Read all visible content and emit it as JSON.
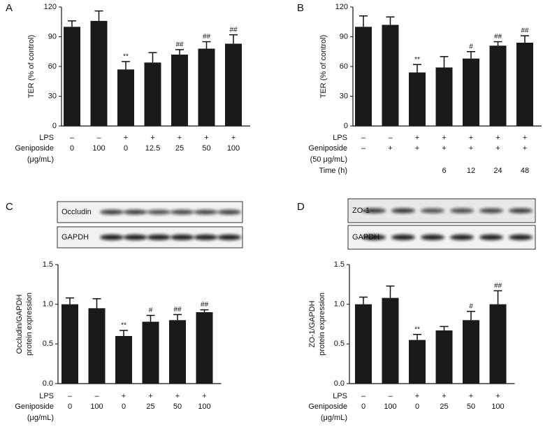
{
  "chart_data": [
    {
      "type": "bar",
      "panel": "A",
      "ylabel": [
        "TER (% of control)"
      ],
      "ylim": [
        0,
        120
      ],
      "yticks": [
        0,
        30,
        60,
        90,
        120
      ],
      "color": "#1a1a1a",
      "values": [
        100,
        106,
        57,
        64,
        72,
        78,
        83
      ],
      "errors": [
        6,
        10,
        8,
        10,
        5,
        7,
        9
      ],
      "annotations": [
        null,
        null,
        "**",
        null,
        "##",
        "##",
        "##"
      ],
      "table": [
        {
          "label": "LPS",
          "cells": [
            "–",
            "–",
            "+",
            "+",
            "+",
            "+",
            "+"
          ]
        },
        {
          "label": "Geniposide",
          "cells": [
            0,
            100,
            0,
            12.5,
            25,
            50,
            100
          ]
        },
        {
          "label": "(μg/mL)"
        }
      ]
    },
    {
      "type": "bar",
      "panel": "B",
      "ylabel": [
        "TER (% of control)"
      ],
      "ylim": [
        0,
        120
      ],
      "yticks": [
        0,
        30,
        60,
        90,
        120
      ],
      "color": "#1a1a1a",
      "values": [
        100,
        102,
        54,
        59,
        68,
        81,
        84
      ],
      "errors": [
        11,
        8,
        8,
        11,
        7,
        4,
        7
      ],
      "annotations": [
        null,
        null,
        "**",
        null,
        "#",
        "##",
        "##"
      ],
      "table": [
        {
          "label": "LPS",
          "cells": [
            "–",
            "–",
            "+",
            "+",
            "+",
            "+",
            "+"
          ]
        },
        {
          "label": "Geniposide",
          "cells": [
            "–",
            "+",
            "+",
            "+",
            "+",
            "+",
            "+"
          ]
        },
        {
          "label": "(50 μg/mL)"
        },
        {
          "label": "Time (h)",
          "cells": [
            null,
            null,
            null,
            6,
            12,
            24,
            48
          ]
        }
      ]
    },
    {
      "type": "bar",
      "panel": "C",
      "ylabel": [
        "Occludin/GAPDH",
        "protein expression"
      ],
      "ylim": [
        0,
        1.5
      ],
      "yticks": [
        {
          "value": 0,
          "label": "0.0"
        },
        0.5,
        {
          "value": 1,
          "label": "1.0"
        },
        1.5
      ],
      "color": "#1a1a1a",
      "values": [
        1.0,
        0.95,
        0.6,
        0.78,
        0.8,
        0.9
      ],
      "errors": [
        0.08,
        0.12,
        0.07,
        0.08,
        0.07,
        0.03
      ],
      "annotations": [
        null,
        null,
        "**",
        "#",
        "##",
        "##"
      ],
      "blots": [
        {
          "label": "Occludin"
        },
        {
          "label": "GAPDH"
        }
      ],
      "table": [
        {
          "label": "LPS",
          "cells": [
            "–",
            "–",
            "+",
            "+",
            "+",
            "+"
          ]
        },
        {
          "label": "Geniposide",
          "cells": [
            0,
            100,
            0,
            25,
            50,
            100
          ]
        },
        {
          "label": "(μg/mL)"
        }
      ]
    },
    {
      "type": "bar",
      "panel": "D",
      "ylabel": [
        "ZO-1/GAPDH",
        "protein expression"
      ],
      "ylim": [
        0,
        1.5
      ],
      "yticks": [
        {
          "value": 0,
          "label": "0.0"
        },
        0.5,
        {
          "value": 1,
          "label": "1.0"
        },
        1.5
      ],
      "color": "#1a1a1a",
      "values": [
        1.0,
        1.08,
        0.55,
        0.67,
        0.8,
        1.0
      ],
      "errors": [
        0.09,
        0.15,
        0.07,
        0.05,
        0.11,
        0.17
      ],
      "annotations": [
        null,
        null,
        "**",
        null,
        "#",
        "##"
      ],
      "blots": [
        {
          "label": "ZO-1"
        },
        {
          "label": "GAPDH"
        }
      ],
      "table": [
        {
          "label": "LPS",
          "cells": [
            "–",
            "–",
            "+",
            "+",
            "+",
            "+"
          ]
        },
        {
          "label": "Geniposide",
          "cells": [
            0,
            100,
            0,
            25,
            50,
            100
          ]
        },
        {
          "label": "(μg/mL)"
        }
      ]
    }
  ]
}
